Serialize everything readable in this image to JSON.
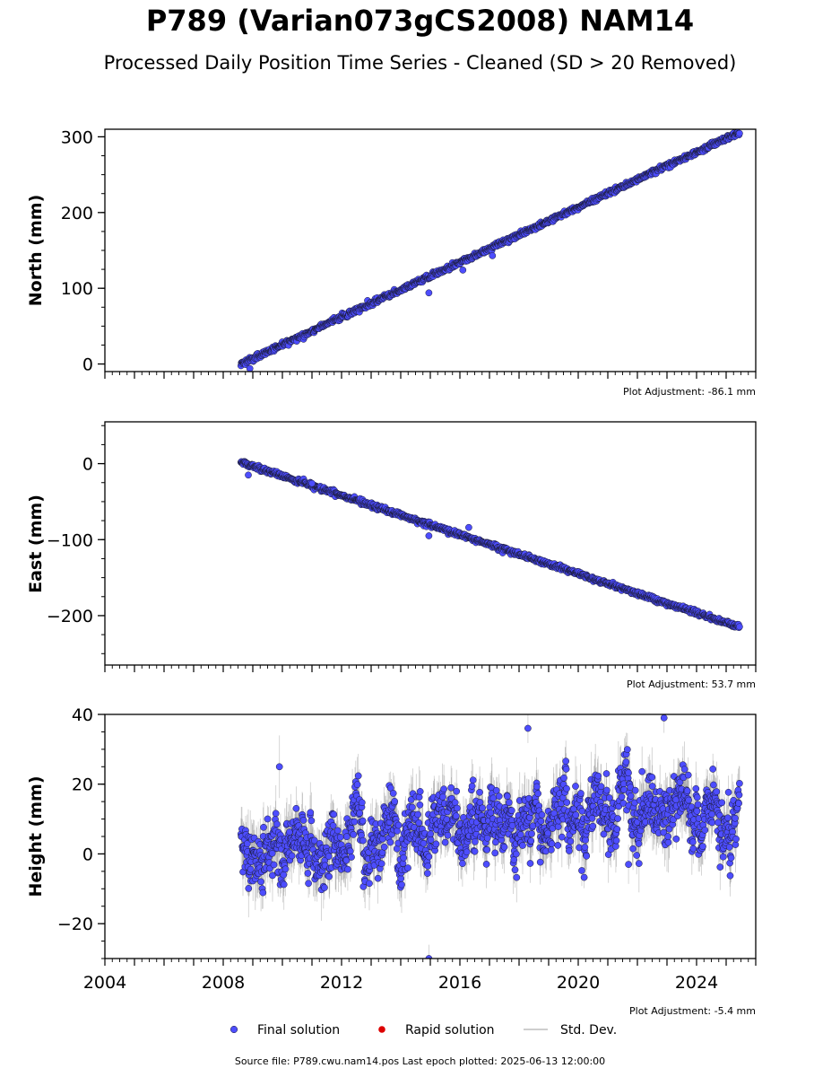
{
  "header": {
    "title": "P789 (Varian073gCS2008) NAM14",
    "subtitle": "Processed Daily Position Time Series - Cleaned (SD > 20 Removed)"
  },
  "footer": {
    "source": "Source file: P789.cwu.nam14.pos  Last epoch plotted: 2025-06-13 12:00:00"
  },
  "colors": {
    "final": "#4d4dff",
    "rapid": "#dd0000",
    "stddev": "#bdbdbd",
    "marker_edge": "#1a1a33"
  },
  "chart_data": [
    {
      "type": "scatter",
      "panel": "north",
      "ylabel": "North (mm)",
      "xlim": [
        2004,
        2026
      ],
      "ylim": [
        -10,
        310
      ],
      "yticks": [
        0,
        100,
        200,
        300
      ],
      "ytick_labels": [
        "0",
        "100",
        "200",
        "300"
      ],
      "adjustment": "Plot Adjustment: -86.1 mm",
      "trend": {
        "start": [
          2008.6,
          0
        ],
        "end": [
          2025.45,
          306
        ]
      },
      "noise_mm": 1.6,
      "outliers": [
        [
          2008.9,
          -6
        ],
        [
          2014.95,
          94
        ],
        [
          2017.1,
          143
        ],
        [
          2016.1,
          124
        ]
      ]
    },
    {
      "type": "scatter",
      "panel": "east",
      "ylabel": "East (mm)",
      "xlim": [
        2004,
        2026
      ],
      "ylim": [
        -265,
        55
      ],
      "yticks": [
        0,
        -100,
        -200
      ],
      "ytick_labels": [
        "0",
        "−100",
        "−200"
      ],
      "adjustment": "Plot Adjustment: 53.7 mm",
      "trend": {
        "start": [
          2008.6,
          2
        ],
        "end": [
          2025.45,
          -215
        ]
      },
      "noise_mm": 1.6,
      "outliers": [
        [
          2008.85,
          -15
        ],
        [
          2014.95,
          -95
        ],
        [
          2016.3,
          -84
        ],
        [
          2011.0,
          -26
        ]
      ]
    },
    {
      "type": "scatter",
      "panel": "height",
      "ylabel": "Height (mm)",
      "xlim": [
        2004,
        2026
      ],
      "ylim": [
        -30,
        40
      ],
      "yticks": [
        -20,
        0,
        20,
        40
      ],
      "ytick_labels": [
        "−20",
        "0",
        "20",
        "40"
      ],
      "xticks": [
        2004,
        2008,
        2012,
        2016,
        2020,
        2024
      ],
      "xtick_labels": [
        "2004",
        "2008",
        "2012",
        "2016",
        "2020",
        "2024"
      ],
      "adjustment": "Plot Adjustment: -5.4 mm",
      "trend": {
        "start": [
          2008.6,
          0
        ],
        "end": [
          2025.45,
          16
        ]
      },
      "noise_mm": 6.5,
      "outliers": [
        [
          2014.95,
          -30
        ],
        [
          2009.9,
          25
        ],
        [
          2018.3,
          36
        ],
        [
          2022.9,
          39
        ],
        [
          2021.7,
          -3
        ]
      ]
    }
  ],
  "legend": {
    "items": [
      {
        "label": "Final solution",
        "kind": "dot",
        "color": "#4d4dff"
      },
      {
        "label": "Rapid solution",
        "kind": "dot",
        "color": "#dd0000"
      },
      {
        "label": "Std. Dev.",
        "kind": "line",
        "color": "#bdbdbd"
      }
    ]
  }
}
